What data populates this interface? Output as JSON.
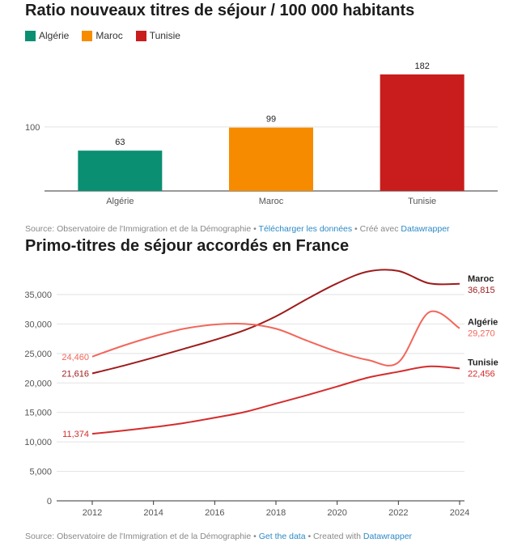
{
  "chart_data": [
    {
      "type": "bar",
      "title": "Ratio nouveaux titres de séjour / 100 000 habitants",
      "categories": [
        "Algérie",
        "Maroc",
        "Tunisie"
      ],
      "values": [
        63,
        99,
        182
      ],
      "colors": [
        "#0a8f73",
        "#f78b00",
        "#c91d1d"
      ],
      "legend": [
        "Algérie",
        "Maroc",
        "Tunisie"
      ],
      "legend_position": "top-left",
      "yticks": [
        100
      ],
      "ylim": [
        0,
        182
      ],
      "grid": true,
      "source": {
        "prefix": "Source: Observatoire de l'Immigration et de la Démographie • ",
        "link1": "Télécharger les données",
        "middle": " • Créé avec ",
        "link2": "Datawrapper"
      }
    },
    {
      "type": "line",
      "title": "Primo-titres de séjour accordés en France",
      "x": [
        2012,
        2013,
        2014,
        2015,
        2016,
        2017,
        2018,
        2019,
        2020,
        2021,
        2022,
        2023,
        2024
      ],
      "xticks": [
        "2012",
        "2014",
        "2016",
        "2018",
        "2020",
        "2022",
        "2024"
      ],
      "yticks": [
        "0",
        "5,000",
        "10,000",
        "15,000",
        "20,000",
        "25,000",
        "30,000",
        "35,000"
      ],
      "ylim": [
        0,
        35000
      ],
      "grid": true,
      "series": [
        {
          "name": "Maroc",
          "color": "#9e1b1b",
          "values": [
            21616,
            22900,
            24300,
            25800,
            27300,
            29000,
            31300,
            34200,
            36900,
            38900,
            39000,
            36900,
            36815
          ],
          "start_label": "21,616",
          "end_label": "36,815"
        },
        {
          "name": "Algérie",
          "color": "#f2665a",
          "values": [
            24460,
            26300,
            27900,
            29200,
            29900,
            30000,
            29200,
            27200,
            25300,
            23900,
            23500,
            32000,
            29270
          ],
          "start_label": "24,460",
          "end_label": "29,270"
        },
        {
          "name": "Tunisie",
          "color": "#d42c2c",
          "values": [
            11374,
            11900,
            12500,
            13200,
            14100,
            15100,
            16500,
            17900,
            19400,
            20900,
            21900,
            22800,
            22456
          ],
          "start_label": "11,374",
          "end_label": "22,456"
        }
      ],
      "source": {
        "prefix": "Source: Observatoire de l'Immigration et de la Démographie • ",
        "link1": "Get the data",
        "middle": " • Created with ",
        "link2": "Datawrapper"
      }
    }
  ]
}
